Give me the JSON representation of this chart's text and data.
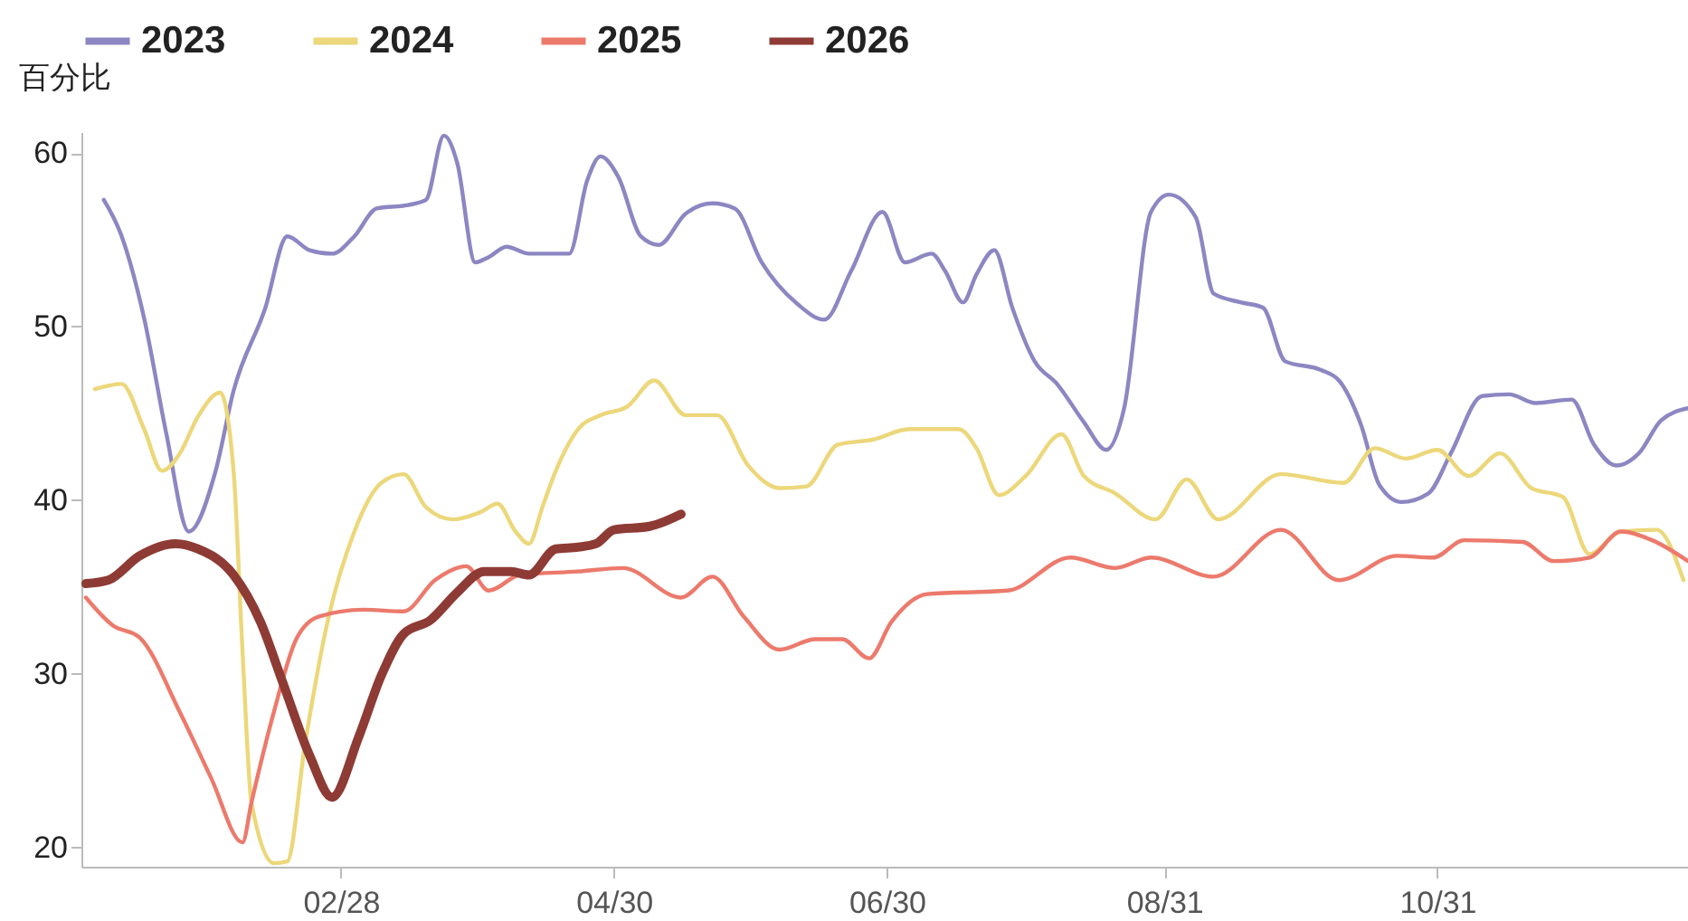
{
  "chart_data": {
    "type": "line",
    "ylabel": "百分比",
    "legend": "top",
    "grid": false,
    "marker": "none",
    "line_style": "solid",
    "xlim": [
      "--01-01",
      "--12-26"
    ],
    "ylim": [
      18.9,
      61.2
    ],
    "yticks": [
      20,
      30,
      40,
      50,
      60
    ],
    "xticks": [
      {
        "value": "--02-28",
        "label": "02/28"
      },
      {
        "value": "--04-30",
        "label": "04/30"
      },
      {
        "value": "--06-30",
        "label": "06/30"
      },
      {
        "value": "--08-31",
        "label": "08/31"
      },
      {
        "value": "--10-31",
        "label": "10/31"
      }
    ],
    "series": [
      {
        "name": "2023",
        "color": "#8c87c2",
        "x": [
          "--01-06",
          "--01-10",
          "--01-15",
          "--01-20",
          "--01-25",
          "--01-31",
          "--02-04",
          "--02-11",
          "--02-16",
          "--02-21",
          "--02-26",
          "--03-03",
          "--03-08",
          "--03-15",
          "--03-19",
          "--03-23",
          "--03-26",
          "--03-30",
          "--04-02",
          "--04-06",
          "--04-11",
          "--04-20",
          "--04-24",
          "--04-27",
          "--05-01",
          "--05-06",
          "--05-10",
          "--05-16",
          "--05-22",
          "--05-27",
          "--06-02",
          "--06-10",
          "--06-16",
          "--06-22",
          "--06-29",
          "--07-04",
          "--07-10",
          "--07-13",
          "--07-17",
          "--07-20",
          "--07-24",
          "--07-28",
          "--08-02",
          "--08-07",
          "--08-13",
          "--08-18",
          "--08-22",
          "--08-28",
          "--09-01",
          "--09-07",
          "--09-11",
          "--09-17",
          "--09-22",
          "--09-27",
          "--10-05",
          "--10-09",
          "--10-14",
          "--10-18",
          "--10-23",
          "--10-29",
          "--11-03",
          "--11-10",
          "--11-16",
          "--11-22",
          "--11-30",
          "--12-05",
          "--12-10",
          "--12-15",
          "--12-20",
          "--12-26"
        ],
        "values": [
          57.3,
          55.2,
          50.5,
          43.8,
          38.2,
          41.7,
          46.3,
          51,
          55.2,
          54.4,
          54.2,
          55.2,
          56.8,
          57,
          57.3,
          61,
          59.4,
          53.7,
          54,
          54.6,
          54.2,
          54.2,
          58.4,
          59.8,
          58.6,
          55.2,
          54.7,
          56.5,
          57.1,
          56.8,
          53.7,
          51.3,
          50.4,
          53.2,
          56.6,
          53.7,
          54.2,
          53.2,
          51.4,
          53,
          54.4,
          51.1,
          48,
          46.7,
          44.5,
          42.9,
          45.3,
          56.6,
          57.6,
          56.3,
          51.9,
          51.4,
          51.1,
          48,
          47.5,
          46.9,
          44.3,
          40.9,
          39.9,
          40.4,
          42.7,
          46,
          46.1,
          45.6,
          45.8,
          43.2,
          42,
          42.7,
          44.6,
          45.3
        ]
      },
      {
        "name": "2024",
        "color": "#ecd77a",
        "x": [
          "--01-04",
          "--01-10",
          "--01-15",
          "--01-19",
          "--01-23",
          "--01-27",
          "--02-01",
          "--02-04",
          "--02-06",
          "--02-08",
          "--02-13",
          "--02-16",
          "--02-20",
          "--02-25",
          "--03-03",
          "--03-09",
          "--03-14",
          "--03-19",
          "--03-25",
          "--03-31",
          "--04-04",
          "--04-08",
          "--04-11",
          "--04-14",
          "--04-17",
          "--04-22",
          "--04-27",
          "--05-03",
          "--05-09",
          "--05-16",
          "--05-23",
          "--05-30",
          "--06-06",
          "--06-12",
          "--06-19",
          "--06-27",
          "--07-05",
          "--07-16",
          "--07-20",
          "--07-25",
          "--07-31",
          "--08-08",
          "--08-13",
          "--08-20",
          "--08-29",
          "--09-05",
          "--09-12",
          "--09-26",
          "--10-10",
          "--10-17",
          "--10-24",
          "--10-31",
          "--11-07",
          "--11-14",
          "--11-21",
          "--11-28",
          "--12-04",
          "--12-11",
          "--12-19",
          "--12-25"
        ],
        "values": [
          46.4,
          46.7,
          44.1,
          41.7,
          42.7,
          44.8,
          46.2,
          41.7,
          31.3,
          22.6,
          19.1,
          19.2,
          26,
          33,
          38.2,
          41,
          41.5,
          39.6,
          38.9,
          39.3,
          39.8,
          38.2,
          37.5,
          39.6,
          41.7,
          44.1,
          44.9,
          45.4,
          46.9,
          44.9,
          44.9,
          42,
          40.7,
          40.8,
          43.2,
          43.5,
          44.1,
          44.1,
          43,
          40.3,
          41.4,
          43.8,
          41.4,
          40.4,
          38.9,
          41.2,
          38.9,
          41.5,
          41,
          43,
          42.4,
          42.9,
          41.4,
          42.7,
          40.7,
          40.2,
          36.9,
          38.2,
          38.3,
          35.4
        ]
      },
      {
        "name": "2025",
        "color": "#ec7a6c",
        "x": [
          "--01-02",
          "--01-08",
          "--01-14",
          "--01-23",
          "--01-30",
          "--02-06",
          "--02-08",
          "--02-13",
          "--02-18",
          "--02-23",
          "--03-05",
          "--03-14",
          "--03-21",
          "--03-28",
          "--04-02",
          "--04-09",
          "--04-22",
          "--05-02",
          "--05-15",
          "--05-22",
          "--05-29",
          "--06-06",
          "--06-14",
          "--06-20",
          "--06-26",
          "--07-01",
          "--07-09",
          "--07-27",
          "--08-10",
          "--08-20",
          "--08-28",
          "--09-11",
          "--09-26",
          "--10-09",
          "--10-22",
          "--10-30",
          "--11-06",
          "--11-19",
          "--11-26",
          "--12-04",
          "--12-11",
          "--12-18",
          "--12-26"
        ],
        "values": [
          34.4,
          32.8,
          32.1,
          27.8,
          24,
          20.3,
          22.6,
          27.8,
          32,
          33.3,
          33.7,
          33.6,
          35.4,
          36.2,
          34.8,
          35.7,
          35.9,
          36.1,
          34.4,
          35.6,
          33.3,
          31.4,
          32,
          32,
          30.9,
          33,
          34.6,
          34.8,
          36.7,
          36.1,
          36.7,
          35.6,
          38.3,
          35.4,
          36.8,
          36.7,
          37.7,
          37.6,
          36.5,
          36.7,
          38.2,
          37.7,
          36.5
        ]
      },
      {
        "name": "2026",
        "color": "#8e3b35",
        "x": [
          "--01-02",
          "--01-07",
          "--01-14",
          "--01-22",
          "--01-27",
          "--02-04",
          "--02-10",
          "--02-15",
          "--02-21",
          "--02-26",
          "--03-04",
          "--03-09",
          "--03-14",
          "--03-20",
          "--03-26",
          "--04-01",
          "--04-07",
          "--04-11",
          "--04-17",
          "--04-22",
          "--04-26",
          "--04-30",
          "--05-08",
          "--05-15"
        ],
        "values": [
          35.2,
          35.4,
          36.8,
          37.5,
          37.2,
          35.7,
          33,
          29.5,
          25.3,
          22.9,
          26.4,
          29.9,
          32.3,
          33.1,
          34.7,
          35.9,
          35.9,
          35.7,
          37.2,
          37.3,
          37.5,
          38.3,
          38.5,
          39.2
        ]
      }
    ]
  }
}
